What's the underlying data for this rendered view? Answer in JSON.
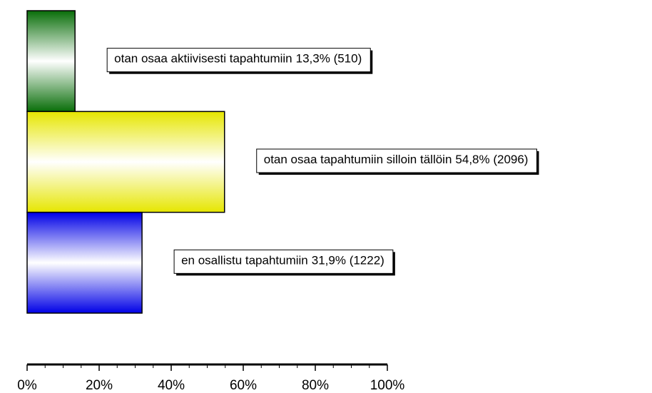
{
  "chart_data": {
    "type": "bar",
    "orientation": "horizontal",
    "categories": [
      "otan osaa aktiivisesti tapahtumiin",
      "otan osaa tapahtumiin silloin tällöin",
      "en osallistu tapahtumiin"
    ],
    "values": [
      13.3,
      54.8,
      31.9
    ],
    "value_labels": [
      "13,3% (510)",
      "54,8% (2096)",
      "31,9% (1222)"
    ],
    "colors": [
      "#0a7a0a",
      "#ffff00",
      "#0000ff"
    ],
    "xlim": [
      0,
      100
    ],
    "xticks": [
      {
        "value": 0,
        "label": "0%"
      },
      {
        "value": 20,
        "label": "20%"
      },
      {
        "value": 40,
        "label": "40%"
      },
      {
        "value": 60,
        "label": "60%"
      },
      {
        "value": 80,
        "label": "80%"
      },
      {
        "value": 100,
        "label": "100%"
      }
    ],
    "xticks_minor": [
      5,
      10,
      15,
      25,
      30,
      35,
      45,
      50,
      55,
      65,
      70,
      75,
      85,
      90,
      95
    ]
  }
}
